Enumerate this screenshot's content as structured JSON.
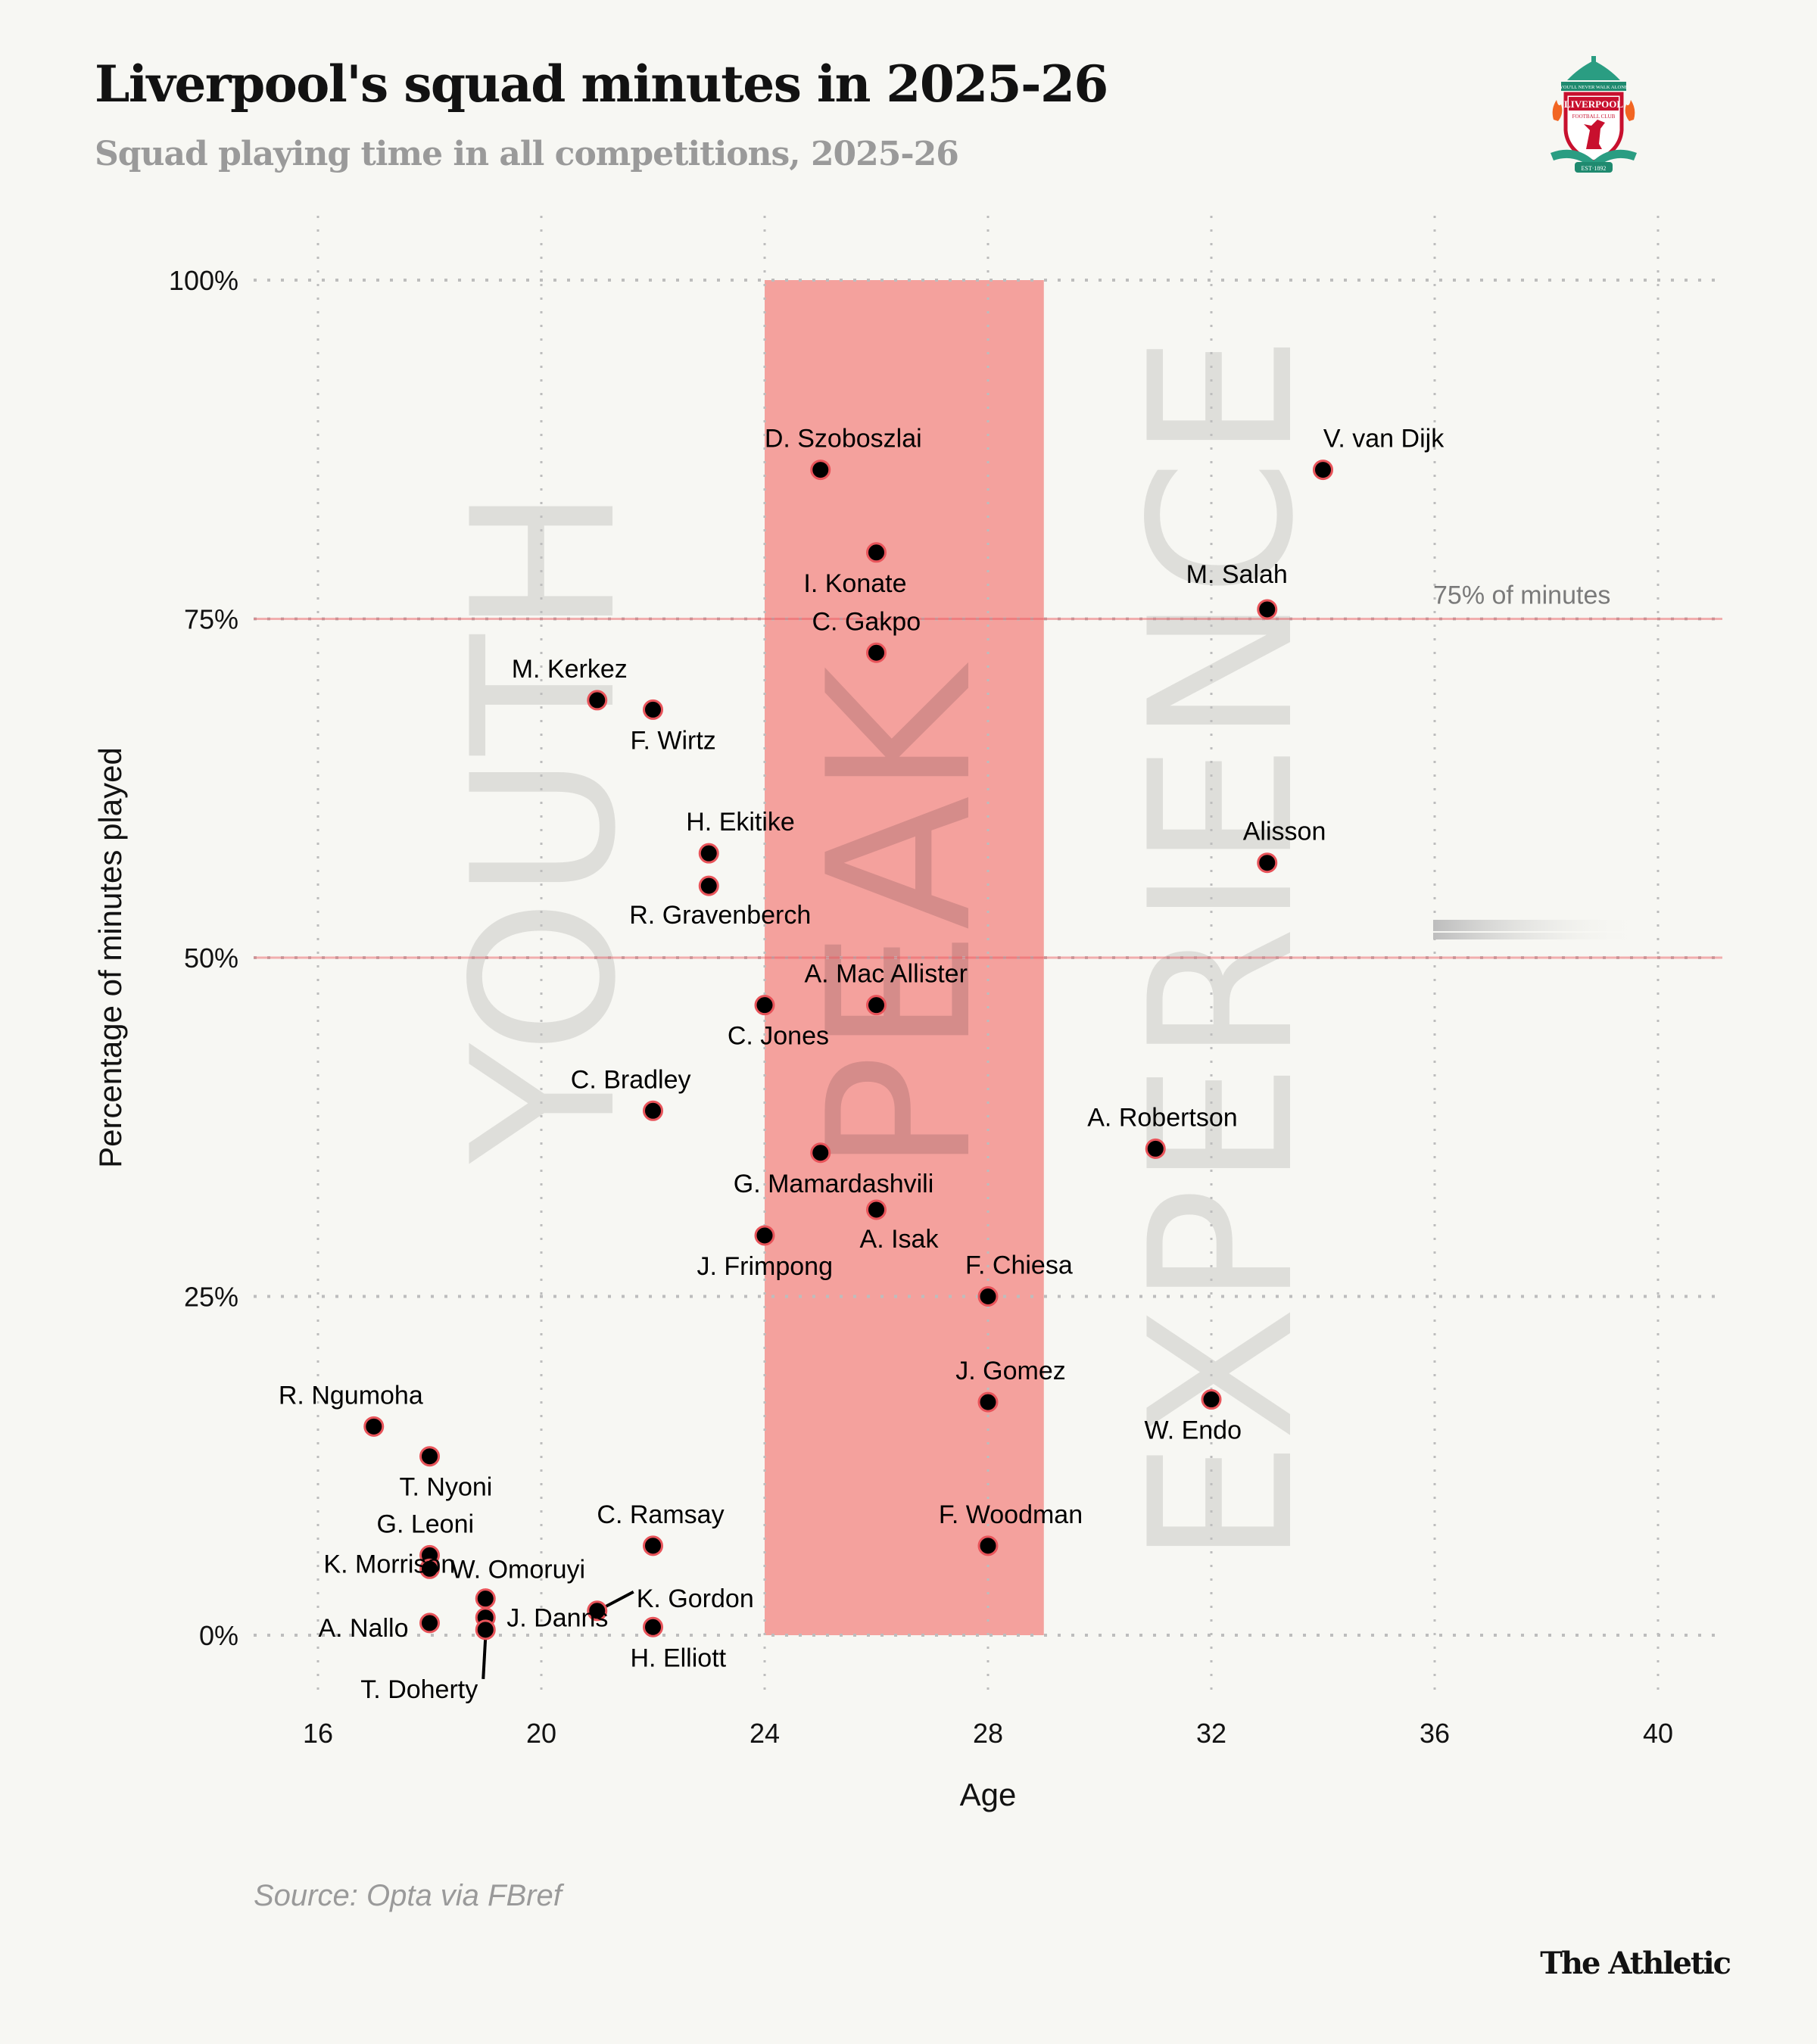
{
  "header": {
    "title": "Liverpool's squad minutes in 2025-26",
    "subtitle": "Squad playing time in all competitions, 2025-26",
    "crest_icon": "liverpool-fc-crest",
    "crest_motto": "YOU'LL NEVER WALK ALONE",
    "crest_name": "LIVERPOOL",
    "crest_sub": "FOOTBALL CLUB",
    "crest_est": "EST·1892"
  },
  "footer": {
    "source": "Source: Opta via FBref",
    "brand": "The Athletic"
  },
  "colors": {
    "background": "#f7f7f3",
    "peak_band": "#f4a19d",
    "reference_line": "#e8545a",
    "point_fill": "#000000",
    "point_stroke": "#e8545a",
    "watermark": "#dededa",
    "gridline": "#bdbdbd"
  },
  "chart_data": {
    "type": "scatter",
    "title": "Liverpool's squad minutes in 2025-26",
    "subtitle": "Squad playing time in all competitions, 2025-26",
    "xlabel": "Age",
    "ylabel": "Percentage of minutes played",
    "xlim": [
      16,
      40
    ],
    "ylim": [
      0,
      100
    ],
    "xticks": [
      16,
      20,
      24,
      28,
      32,
      36,
      40
    ],
    "xtick_labels": [
      "16",
      "20",
      "24",
      "28",
      "32",
      "36",
      "40"
    ],
    "yticks": [
      0,
      25,
      50,
      75,
      100
    ],
    "ytick_labels": [
      "0%",
      "25%",
      "50%",
      "75%",
      "100%"
    ],
    "grid": true,
    "peak_band": {
      "x_from": 24,
      "x_to": 29,
      "label": "PEAK"
    },
    "zone_labels": [
      {
        "text": "YOUTH",
        "x": 21,
        "y": 61
      },
      {
        "text": "PEAK",
        "x": 26.5,
        "y": 56
      },
      {
        "text": "EXPERIENCE",
        "x": 32,
        "y": 58
      }
    ],
    "reference_lines": [
      {
        "y": 75,
        "label": "75% of minutes"
      },
      {
        "y": 50,
        "label": ""
      }
    ],
    "points": [
      {
        "name": "D. Szoboszlai",
        "age": 25,
        "pct": 86.0,
        "label_pos": "above"
      },
      {
        "name": "V. van Dijk",
        "age": 34,
        "pct": 86.0,
        "label_pos": "above"
      },
      {
        "name": "I. Konate",
        "age": 26,
        "pct": 79.9,
        "label_pos": "below-left"
      },
      {
        "name": "M. Salah",
        "age": 33,
        "pct": 75.7,
        "label_pos": "above"
      },
      {
        "name": "C. Gakpo",
        "age": 26,
        "pct": 72.5,
        "label_pos": "above-right"
      },
      {
        "name": "M. Kerkez",
        "age": 21,
        "pct": 69.0,
        "label_pos": "above-left"
      },
      {
        "name": "F. Wirtz",
        "age": 22,
        "pct": 68.3,
        "label_pos": "below-right"
      },
      {
        "name": "H. Ekitike",
        "age": 23,
        "pct": 57.7,
        "label_pos": "above-right"
      },
      {
        "name": "R. Gravenberch",
        "age": 23,
        "pct": 55.3,
        "label_pos": "below"
      },
      {
        "name": "Alisson",
        "age": 33,
        "pct": 57.0,
        "label_pos": "above-right"
      },
      {
        "name": "C. Jones",
        "age": 24,
        "pct": 46.5,
        "label_pos": "below-left"
      },
      {
        "name": "A. Mac Allister",
        "age": 26,
        "pct": 46.5,
        "label_pos": "above-right"
      },
      {
        "name": "C. Bradley",
        "age": 22,
        "pct": 38.7,
        "label_pos": "above-left"
      },
      {
        "name": "A. Robertson",
        "age": 31,
        "pct": 35.9,
        "label_pos": "above-right"
      },
      {
        "name": "G. Mamardashvili",
        "age": 25,
        "pct": 35.6,
        "label_pos": "below-right"
      },
      {
        "name": "A. Isak",
        "age": 26,
        "pct": 31.4,
        "label_pos": "below"
      },
      {
        "name": "J. Frimpong",
        "age": 24,
        "pct": 29.5,
        "label_pos": "below-left"
      },
      {
        "name": "F. Chiesa",
        "age": 28,
        "pct": 25.0,
        "label_pos": "above-right"
      },
      {
        "name": "J. Gomez",
        "age": 28,
        "pct": 17.2,
        "label_pos": "above"
      },
      {
        "name": "W. Endo",
        "age": 32,
        "pct": 17.4,
        "label_pos": "below-left"
      },
      {
        "name": "R. Ngumoha",
        "age": 17,
        "pct": 15.4,
        "label_pos": "above-left"
      },
      {
        "name": "T. Nyoni",
        "age": 18,
        "pct": 13.2,
        "label_pos": "below-right"
      },
      {
        "name": "C. Ramsay",
        "age": 22,
        "pct": 6.6,
        "label_pos": "above"
      },
      {
        "name": "F. Woodman",
        "age": 28,
        "pct": 6.6,
        "label_pos": "above"
      },
      {
        "name": "G. Leoni",
        "age": 18,
        "pct": 5.9,
        "label_pos": "above-right"
      },
      {
        "name": "W. Omoruyi",
        "age": 18,
        "pct": 4.9,
        "label_pos": "right"
      },
      {
        "name": "K. Morrison",
        "age": 19,
        "pct": 2.7,
        "label_pos": "far-left"
      },
      {
        "name": "K. Gordon",
        "age": 21,
        "pct": 1.8,
        "label_pos": "leader-right"
      },
      {
        "name": "J. Danns",
        "age": 19,
        "pct": 1.3,
        "label_pos": "right"
      },
      {
        "name": "A. Nallo",
        "age": 18,
        "pct": 0.9,
        "label_pos": "left"
      },
      {
        "name": "H. Elliott",
        "age": 22,
        "pct": 0.6,
        "label_pos": "below-right"
      },
      {
        "name": "T. Doherty",
        "age": 19,
        "pct": 0.4,
        "label_pos": "leader-below"
      }
    ]
  }
}
